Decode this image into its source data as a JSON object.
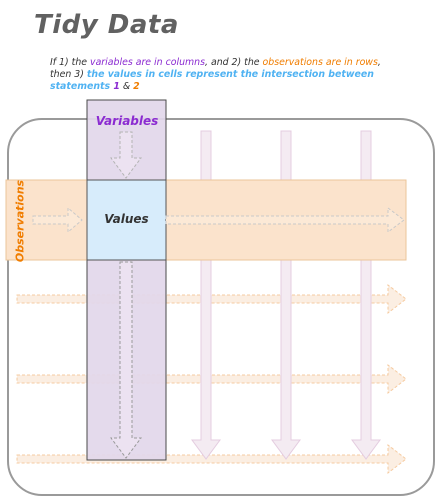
{
  "title": "Tidy Data",
  "subtitle": {
    "p1": "If 1) the ",
    "variables_phrase": "variables are in columns",
    "p2": ", and 2) the ",
    "observations_phrase": "observations are in rows",
    "p3": ", then 3) ",
    "values_phrase": "the values in cells represent the intersection between statements ",
    "num1": "1",
    "amp": " & ",
    "num2": "2"
  },
  "labels": {
    "variables": "Variables",
    "observations": "Observations",
    "values": "Values"
  },
  "colors": {
    "variables": "#8b2bd1",
    "observations": "#f07d00",
    "values": "#4fb2f2",
    "column_fill": "#e2d7ea",
    "row_fill": "#fbe3cc",
    "cell_fill": "#d7ecfb"
  }
}
